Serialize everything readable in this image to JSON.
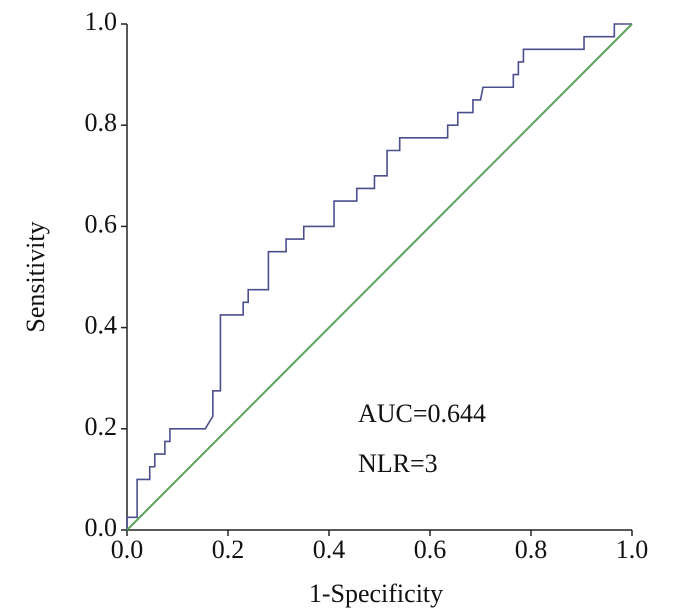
{
  "chart_data": {
    "type": "line",
    "x_label": "1-Specificity",
    "y_label": "Sensitivity",
    "annotations": [
      "AUC=0.644",
      "NLR=3"
    ],
    "xlim": [
      0,
      1
    ],
    "ylim": [
      0,
      1
    ],
    "xticks": [
      {
        "value": 0,
        "label": "0.0"
      },
      {
        "value": 0.2,
        "label": "0.2"
      },
      {
        "value": 0.4,
        "label": "0.4"
      },
      {
        "value": 0.6,
        "label": "0.6"
      },
      {
        "value": 0.8,
        "label": "0.8"
      },
      {
        "value": 1,
        "label": "1.0"
      }
    ],
    "yticks": [
      {
        "value": 0,
        "label": "0.0"
      },
      {
        "value": 0.2,
        "label": "0.2"
      },
      {
        "value": 0.4,
        "label": "0.4"
      },
      {
        "value": 0.6,
        "label": "0.6"
      },
      {
        "value": 0.8,
        "label": "0.8"
      },
      {
        "value": 1,
        "label": "1.0"
      }
    ],
    "grid": false,
    "series": [
      {
        "color": "#4b4f8c",
        "x": [
          0,
          0,
          0.02,
          0.02,
          0.045,
          0.045,
          0.055,
          0.055,
          0.075,
          0.075,
          0.085,
          0.085,
          0.155,
          0.17,
          0.17,
          0.185,
          0.185,
          0.23,
          0.23,
          0.24,
          0.24,
          0.28,
          0.28,
          0.315,
          0.315,
          0.35,
          0.35,
          0.41,
          0.41,
          0.455,
          0.455,
          0.49,
          0.49,
          0.515,
          0.515,
          0.54,
          0.54,
          0.635,
          0.635,
          0.655,
          0.655,
          0.685,
          0.685,
          0.7,
          0.705,
          0.765,
          0.765,
          0.775,
          0.775,
          0.785,
          0.785,
          0.905,
          0.905,
          0.965,
          0.965,
          1
        ],
        "values": [
          0,
          0.025,
          0.025,
          0.1,
          0.1,
          0.125,
          0.125,
          0.15,
          0.15,
          0.175,
          0.175,
          0.2,
          0.2,
          0.225,
          0.275,
          0.275,
          0.425,
          0.425,
          0.45,
          0.45,
          0.475,
          0.475,
          0.55,
          0.55,
          0.575,
          0.575,
          0.6,
          0.6,
          0.65,
          0.65,
          0.675,
          0.675,
          0.7,
          0.7,
          0.75,
          0.75,
          0.775,
          0.775,
          0.8,
          0.8,
          0.825,
          0.825,
          0.85,
          0.85,
          0.875,
          0.875,
          0.9,
          0.9,
          0.925,
          0.925,
          0.95,
          0.95,
          0.975,
          0.975,
          1,
          1
        ]
      },
      {
        "color": "#5aa35a",
        "x": [
          0,
          1
        ],
        "values": [
          0,
          1
        ]
      }
    ]
  }
}
